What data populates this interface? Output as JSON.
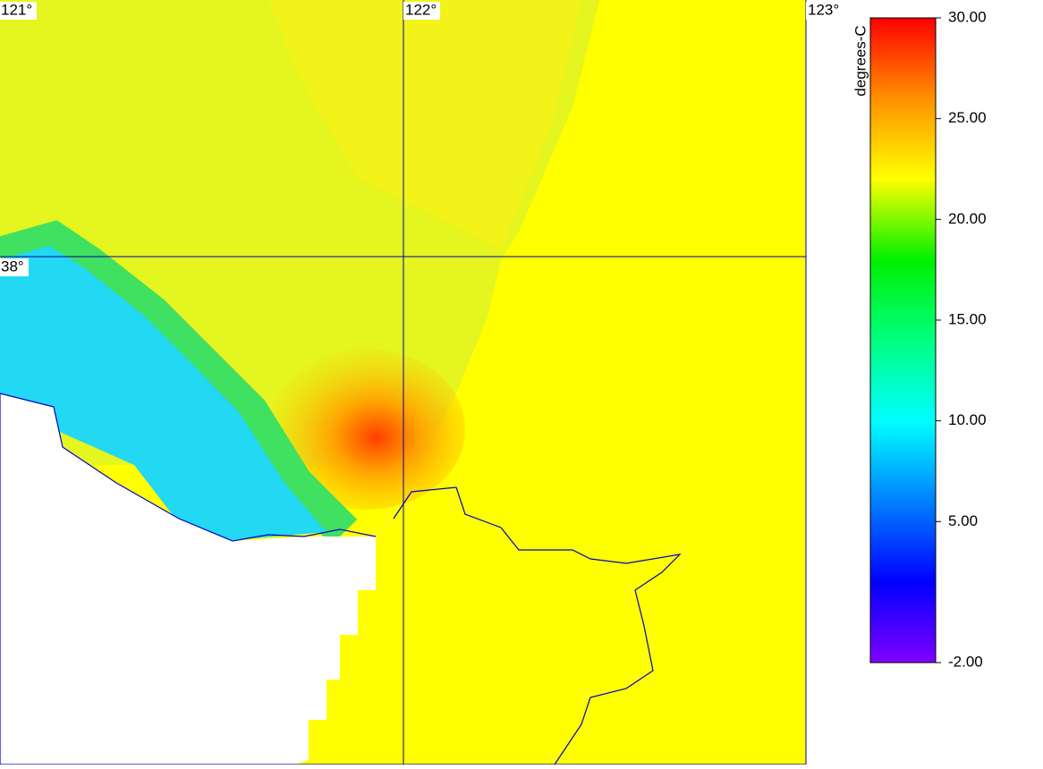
{
  "map": {
    "lon_labels": [
      "121°",
      "122°",
      "123°"
    ],
    "lat_labels": [
      "38°"
    ]
  },
  "colorbar": {
    "title": "degrees-C",
    "range": [
      -2,
      30
    ],
    "ticks": [
      {
        "value": 30,
        "label": "30.00"
      },
      {
        "value": 25,
        "label": "25.00"
      },
      {
        "value": 20,
        "label": "20.00"
      },
      {
        "value": 15,
        "label": "15.00"
      },
      {
        "value": 10,
        "label": "10.00"
      },
      {
        "value": 5,
        "label": "5.00"
      },
      {
        "value": -2,
        "label": "-2.00"
      }
    ],
    "colors": [
      "#8000ff",
      "#0000ff",
      "#0080ff",
      "#00ffff",
      "#00ff80",
      "#00f000",
      "#ffff00",
      "#ff9000",
      "#ff0000"
    ]
  }
}
